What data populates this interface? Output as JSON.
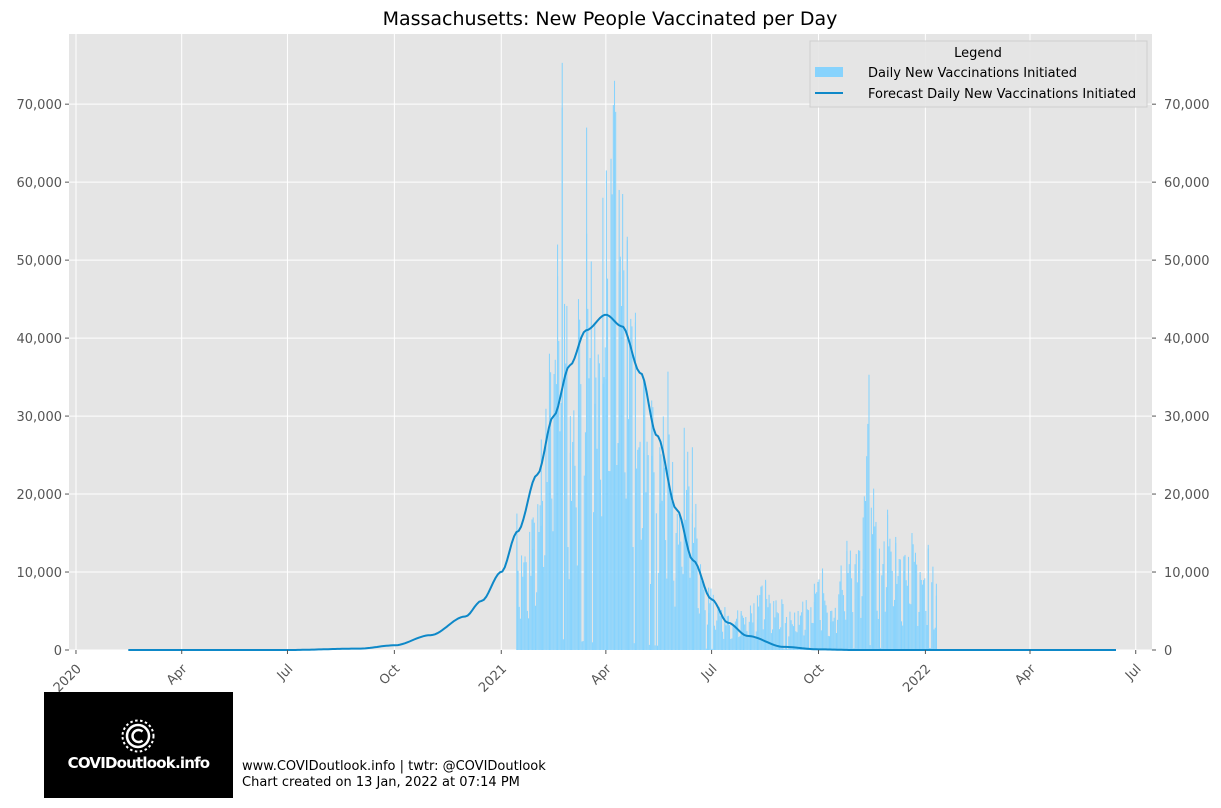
{
  "chart_data": {
    "type": "bar",
    "title": "Massachusetts: New People Vaccinated per Day",
    "xlabel": "",
    "ylabel": "",
    "x_range": [
      "2019-12-26",
      "2022-07-15"
    ],
    "ylim": [
      0,
      79000
    ],
    "x_ticks": [
      {
        "date": "2020-01-01",
        "label": "2020"
      },
      {
        "date": "2020-04-01",
        "label": "Apr"
      },
      {
        "date": "2020-07-01",
        "label": "Jul"
      },
      {
        "date": "2020-10-01",
        "label": "Oct"
      },
      {
        "date": "2021-01-01",
        "label": "2021"
      },
      {
        "date": "2021-04-01",
        "label": "Apr"
      },
      {
        "date": "2021-07-01",
        "label": "Jul"
      },
      {
        "date": "2021-10-01",
        "label": "Oct"
      },
      {
        "date": "2022-01-01",
        "label": "2022"
      },
      {
        "date": "2022-04-01",
        "label": "Apr"
      },
      {
        "date": "2022-07-01",
        "label": "Jul"
      }
    ],
    "y_ticks": [
      0,
      10000,
      20000,
      30000,
      40000,
      50000,
      60000,
      70000
    ],
    "y_tick_labels": [
      "0",
      "10,000",
      "20,000",
      "30,000",
      "40,000",
      "50,000",
      "60,000",
      "70,000"
    ],
    "grid": true,
    "legend": {
      "title": "Legend",
      "placement": "top-right"
    },
    "series": [
      {
        "name": "Daily New Vaccinations Initiated",
        "type": "bar",
        "color": "#87d3fd",
        "start_date": "2021-01-14",
        "points": [
          [
            "2021-01-14",
            17500
          ],
          [
            "2021-01-21",
            12000
          ],
          [
            "2021-01-28",
            17000
          ],
          [
            "2021-02-04",
            27000
          ],
          [
            "2021-02-11",
            38000
          ],
          [
            "2021-02-18",
            52000
          ],
          [
            "2021-02-22",
            75300
          ],
          [
            "2021-03-01",
            30000
          ],
          [
            "2021-03-08",
            45000
          ],
          [
            "2021-03-15",
            67000
          ],
          [
            "2021-03-22",
            42000
          ],
          [
            "2021-03-29",
            58000
          ],
          [
            "2021-04-01",
            61500
          ],
          [
            "2021-04-05",
            63000
          ],
          [
            "2021-04-08",
            73000
          ],
          [
            "2021-04-12",
            59000
          ],
          [
            "2021-04-19",
            53000
          ],
          [
            "2021-04-26",
            42000
          ],
          [
            "2021-05-03",
            35000
          ],
          [
            "2021-05-10",
            32000
          ],
          [
            "2021-05-17",
            26000
          ],
          [
            "2021-05-24",
            35700
          ],
          [
            "2021-05-31",
            15000
          ],
          [
            "2021-06-07",
            28500
          ],
          [
            "2021-06-14",
            26000
          ],
          [
            "2021-06-21",
            11000
          ],
          [
            "2021-06-28",
            8000
          ],
          [
            "2021-07-12",
            5500
          ],
          [
            "2021-07-26",
            5000
          ],
          [
            "2021-08-09",
            7000
          ],
          [
            "2021-08-16",
            9000
          ],
          [
            "2021-08-30",
            6500
          ],
          [
            "2021-09-13",
            5000
          ],
          [
            "2021-09-27",
            8500
          ],
          [
            "2021-10-04",
            10000
          ],
          [
            "2021-10-11",
            5000
          ],
          [
            "2021-10-25",
            14000
          ],
          [
            "2021-11-01",
            11000
          ],
          [
            "2021-11-08",
            17000
          ],
          [
            "2021-11-13",
            35300
          ],
          [
            "2021-11-17",
            20700
          ],
          [
            "2021-11-22",
            13000
          ],
          [
            "2021-11-29",
            18000
          ],
          [
            "2021-12-06",
            14500
          ],
          [
            "2021-12-13",
            12000
          ],
          [
            "2021-12-20",
            15000
          ],
          [
            "2021-12-27",
            10000
          ],
          [
            "2022-01-03",
            13000
          ],
          [
            "2022-01-10",
            8500
          ]
        ]
      },
      {
        "name": "Forecast Daily New Vaccinations Initiated",
        "type": "line",
        "color": "#0e88c8",
        "start_date": "2020-02-15",
        "end_date": "2022-06-15",
        "peak_date": "2021-04-01",
        "peak_value": 43000,
        "samples": [
          [
            "2020-02-15",
            0
          ],
          [
            "2020-07-01",
            0
          ],
          [
            "2020-09-01",
            180
          ],
          [
            "2020-10-01",
            600
          ],
          [
            "2020-11-01",
            1900
          ],
          [
            "2020-12-01",
            4300
          ],
          [
            "2020-12-15",
            6300
          ],
          [
            "2021-01-01",
            10000
          ],
          [
            "2021-01-15",
            15200
          ],
          [
            "2021-02-01",
            22500
          ],
          [
            "2021-02-15",
            30000
          ],
          [
            "2021-03-01",
            36500
          ],
          [
            "2021-03-15",
            41000
          ],
          [
            "2021-04-01",
            43000
          ],
          [
            "2021-04-15",
            41500
          ],
          [
            "2021-05-01",
            35500
          ],
          [
            "2021-05-15",
            27500
          ],
          [
            "2021-06-01",
            18000
          ],
          [
            "2021-06-15",
            11500
          ],
          [
            "2021-07-01",
            6500
          ],
          [
            "2021-07-15",
            3500
          ],
          [
            "2021-08-01",
            1800
          ],
          [
            "2021-09-01",
            400
          ],
          [
            "2021-10-01",
            80
          ],
          [
            "2021-11-01",
            0
          ],
          [
            "2022-06-15",
            0
          ]
        ]
      }
    ]
  },
  "logo": {
    "text": "COVIDoutlook.info",
    "icon": "virus-c-icon"
  },
  "footer": {
    "line1": "www.COVIDoutlook.info | twtr: @COVIDoutlook",
    "line2": "Chart created on 13 Jan, 2022 at 07:14 PM"
  }
}
